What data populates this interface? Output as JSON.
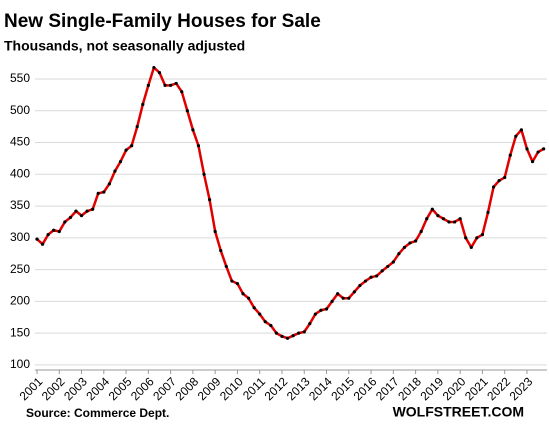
{
  "chart_data": {
    "type": "line",
    "title": "New Single-Family Houses for Sale",
    "subtitle": "Thousands, not seasonally adjusted",
    "source": "Source: Commerce Dept.",
    "brand": "WOLFSTREET.COM",
    "x": [
      2001,
      2001.25,
      2001.5,
      2001.75,
      2002,
      2002.25,
      2002.5,
      2002.75,
      2003,
      2003.25,
      2003.5,
      2003.75,
      2004,
      2004.25,
      2004.5,
      2004.75,
      2005,
      2005.25,
      2005.5,
      2005.75,
      2006,
      2006.25,
      2006.5,
      2006.75,
      2007,
      2007.25,
      2007.5,
      2007.75,
      2008,
      2008.25,
      2008.5,
      2008.75,
      2009,
      2009.25,
      2009.5,
      2009.75,
      2010,
      2010.25,
      2010.5,
      2010.75,
      2011,
      2011.25,
      2011.5,
      2011.75,
      2012,
      2012.25,
      2012.5,
      2012.75,
      2013,
      2013.25,
      2013.5,
      2013.75,
      2014,
      2014.25,
      2014.5,
      2014.75,
      2015,
      2015.25,
      2015.5,
      2015.75,
      2016,
      2016.25,
      2016.5,
      2016.75,
      2017,
      2017.25,
      2017.5,
      2017.75,
      2018,
      2018.25,
      2018.5,
      2018.75,
      2019,
      2019.25,
      2019.5,
      2019.75,
      2020,
      2020.25,
      2020.5,
      2020.75,
      2021,
      2021.25,
      2021.5,
      2021.75,
      2022,
      2022.25,
      2022.5,
      2022.75,
      2023,
      2023.25,
      2023.5,
      2023.75
    ],
    "series": [
      {
        "name": "New single-family houses for sale",
        "color": "#e00000",
        "values": [
          298,
          290,
          305,
          312,
          310,
          325,
          332,
          342,
          335,
          342,
          345,
          370,
          372,
          385,
          405,
          420,
          438,
          445,
          475,
          510,
          540,
          568,
          560,
          540,
          540,
          543,
          530,
          500,
          470,
          445,
          400,
          360,
          310,
          280,
          255,
          232,
          228,
          212,
          205,
          190,
          180,
          168,
          162,
          150,
          145,
          142,
          146,
          150,
          152,
          165,
          180,
          186,
          188,
          200,
          212,
          205,
          205,
          215,
          225,
          232,
          238,
          240,
          248,
          255,
          262,
          275,
          285,
          292,
          295,
          310,
          330,
          345,
          335,
          330,
          325,
          325,
          330,
          300,
          285,
          300,
          305,
          340,
          380,
          390,
          395,
          430,
          460,
          470,
          440,
          420,
          435,
          440
        ]
      }
    ],
    "xlim": [
      2001,
      2023.9
    ],
    "xticks": [
      2001,
      2002,
      2003,
      2004,
      2005,
      2006,
      2007,
      2008,
      2009,
      2010,
      2011,
      2012,
      2013,
      2014,
      2015,
      2016,
      2017,
      2018,
      2019,
      2020,
      2021,
      2022,
      2023
    ],
    "ylim": [
      92,
      572
    ],
    "yticks": [
      100,
      150,
      200,
      250,
      300,
      350,
      400,
      450,
      500,
      550
    ],
    "grid": true
  }
}
